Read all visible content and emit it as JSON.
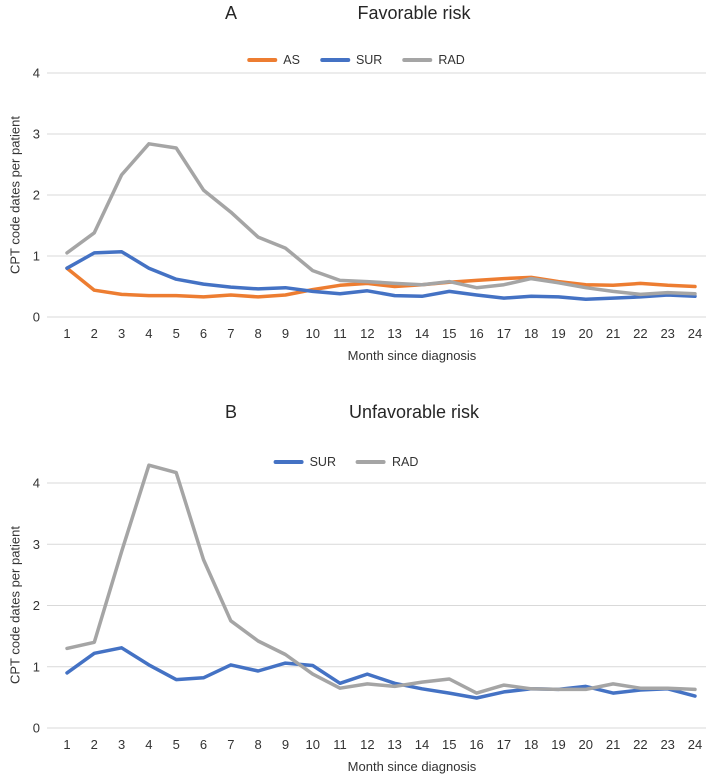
{
  "figure": {
    "panels_count": 2
  },
  "chart_data": [
    {
      "type": "line",
      "panel_label": "A",
      "title": "Favorable risk",
      "xlabel": "Month since diagnosis",
      "ylabel": "CPT code dates per patient",
      "legend_position": "top",
      "grid": "horizontal",
      "gridline_color": "#D9D9D9",
      "ylim": [
        0,
        4
      ],
      "yticks": [
        0,
        1,
        2,
        3,
        4
      ],
      "x": [
        1,
        2,
        3,
        4,
        5,
        6,
        7,
        8,
        9,
        10,
        11,
        12,
        13,
        14,
        15,
        16,
        17,
        18,
        19,
        20,
        21,
        22,
        23,
        24
      ],
      "series": [
        {
          "name": "AS",
          "color": "#ED7D31",
          "values": [
            0.8,
            0.44,
            0.37,
            0.35,
            0.35,
            0.33,
            0.36,
            0.33,
            0.36,
            0.45,
            0.52,
            0.55,
            0.5,
            0.53,
            0.57,
            0.6,
            0.63,
            0.65,
            0.58,
            0.53,
            0.52,
            0.55,
            0.52,
            0.5
          ]
        },
        {
          "name": "SUR",
          "color": "#4472C4",
          "values": [
            0.8,
            1.05,
            1.07,
            0.8,
            0.62,
            0.54,
            0.49,
            0.46,
            0.48,
            0.42,
            0.38,
            0.43,
            0.35,
            0.34,
            0.42,
            0.36,
            0.31,
            0.34,
            0.33,
            0.29,
            0.31,
            0.33,
            0.36,
            0.34
          ]
        },
        {
          "name": "RAD",
          "color": "#A5A5A5",
          "values": [
            1.05,
            1.38,
            2.33,
            2.84,
            2.77,
            2.08,
            1.72,
            1.31,
            1.13,
            0.76,
            0.6,
            0.58,
            0.55,
            0.53,
            0.58,
            0.48,
            0.53,
            0.63,
            0.56,
            0.48,
            0.42,
            0.37,
            0.4,
            0.38
          ]
        }
      ]
    },
    {
      "type": "line",
      "panel_label": "B",
      "title": "Unfavorable risk",
      "xlabel": "Month since diagnosis",
      "ylabel": "CPT code dates per patient",
      "legend_position": "top",
      "grid": "horizontal",
      "gridline_color": "#D9D9D9",
      "ylim": [
        0,
        4.5
      ],
      "yticks": [
        0,
        1,
        2,
        3,
        4
      ],
      "x": [
        1,
        2,
        3,
        4,
        5,
        6,
        7,
        8,
        9,
        10,
        11,
        12,
        13,
        14,
        15,
        16,
        17,
        18,
        19,
        20,
        21,
        22,
        23,
        24
      ],
      "series": [
        {
          "name": "SUR",
          "color": "#4472C4",
          "values": [
            0.9,
            1.22,
            1.31,
            1.03,
            0.79,
            0.82,
            1.03,
            0.93,
            1.06,
            1.02,
            0.73,
            0.88,
            0.73,
            0.64,
            0.57,
            0.49,
            0.59,
            0.64,
            0.63,
            0.68,
            0.57,
            0.62,
            0.64,
            0.52
          ]
        },
        {
          "name": "RAD",
          "color": "#A5A5A5",
          "values": [
            1.3,
            1.4,
            2.88,
            4.29,
            4.17,
            2.75,
            1.75,
            1.42,
            1.2,
            0.88,
            0.65,
            0.72,
            0.68,
            0.75,
            0.8,
            0.57,
            0.7,
            0.64,
            0.63,
            0.63,
            0.72,
            0.65,
            0.65,
            0.63
          ]
        }
      ]
    }
  ]
}
